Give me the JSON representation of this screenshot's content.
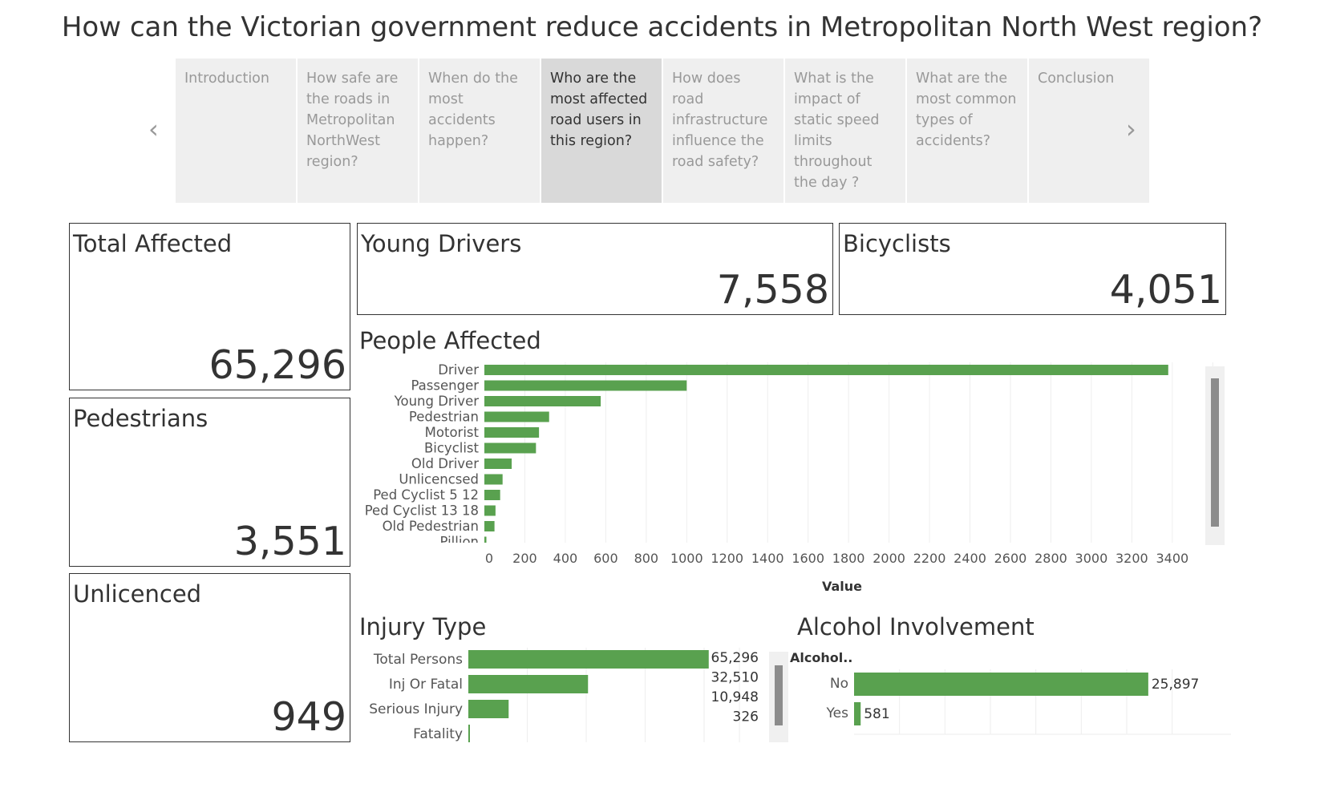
{
  "page_title": "How can the Victorian government reduce accidents in Metropolitan North West region?",
  "story_points": [
    {
      "label": "Introduction",
      "active": false
    },
    {
      "label": "How safe are the roads in Metropolitan NorthWest region?",
      "active": false
    },
    {
      "label": "When do the most accidents happen?",
      "active": false
    },
    {
      "label": "Who are the most affected road users in this region?",
      "active": true
    },
    {
      "label": "How does road infrastructure influence the road safety?",
      "active": false
    },
    {
      "label": "What is the impact of static speed limits throughout the day ?",
      "active": false
    },
    {
      "label": "What are the most common types of accidents?",
      "active": false
    },
    {
      "label": "Conclusion",
      "active": false
    }
  ],
  "nav": {
    "prev": "‹",
    "next": "›",
    "prev_icon": "chevron-left-icon",
    "next_icon": "chevron-right-icon"
  },
  "kpis": {
    "total_affected": {
      "title": "Total Affected",
      "value": "65,296"
    },
    "young_drivers": {
      "title": "Young Drivers",
      "value": "7,558"
    },
    "bicyclists": {
      "title": "Bicyclists",
      "value": "4,051"
    },
    "pedestrians": {
      "title": "Pedestrians",
      "value": "3,551"
    },
    "unlicenced": {
      "title": "Unlicenced",
      "value": "949"
    }
  },
  "colors": {
    "bar": "#59a14f",
    "grid": "#eeeeee",
    "scroll_thumb": "#8c8c8c"
  },
  "chart_data": [
    {
      "type": "bar",
      "orientation": "horizontal",
      "title": "People Affected",
      "xlabel": "Value",
      "categories": [
        "Driver",
        "Passenger",
        "Young Driver",
        "Pedestrian",
        "Motorist",
        "Bicyclist",
        "Old Driver",
        "Unlicencsed",
        "Ped Cyclist 5 12",
        "Ped Cyclist 13 18",
        "Old Pedestrian",
        "Pillion"
      ],
      "values": [
        3380,
        1000,
        575,
        320,
        270,
        255,
        135,
        90,
        78,
        55,
        50,
        10
      ],
      "xlim": [
        0,
        3500
      ],
      "xticks": [
        0,
        200,
        400,
        600,
        800,
        1000,
        1200,
        1400,
        1600,
        1800,
        2000,
        2200,
        2400,
        2600,
        2800,
        3000,
        3200,
        3400
      ],
      "grid": true
    },
    {
      "type": "bar",
      "orientation": "horizontal",
      "title": "Injury Type",
      "categories": [
        "Total Persons",
        "Inj Or Fatal",
        "Serious Injury",
        "Fatality"
      ],
      "values": [
        65296,
        32510,
        10948,
        326
      ],
      "labels": [
        "65,296",
        "32,510",
        "10,948",
        "326"
      ],
      "xlim": [
        0,
        66000
      ],
      "grid": true
    },
    {
      "type": "bar",
      "orientation": "horizontal",
      "title": "Alcohol Involvement",
      "header": "Alcohol..",
      "categories": [
        "No",
        "Yes"
      ],
      "values": [
        25897,
        581
      ],
      "labels": [
        "25,897",
        "581"
      ],
      "xlim": [
        0,
        30000
      ],
      "grid": true
    }
  ]
}
